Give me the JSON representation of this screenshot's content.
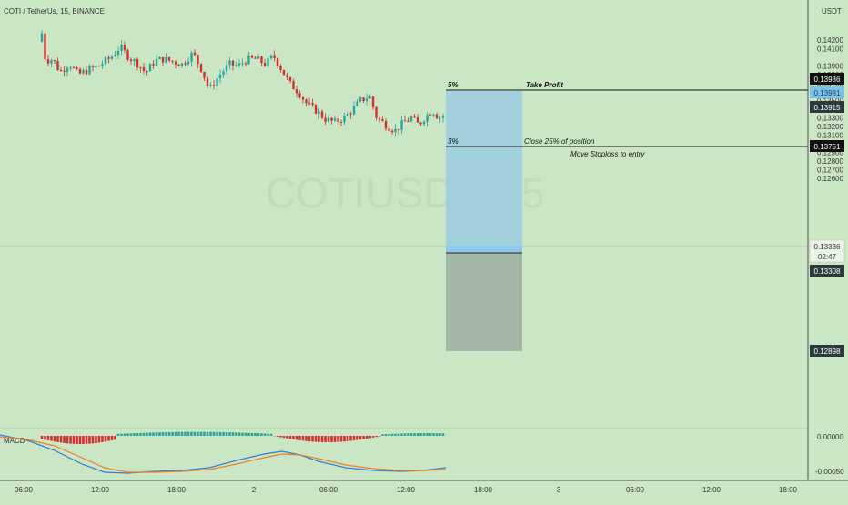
{
  "chart_title": "COTI / TetherUs, 15, BINANCE",
  "watermark": "COTIUSDT, 15",
  "axis_unit": "USDT",
  "countdown": "02:47",
  "colors": {
    "background": "#cbe6c5",
    "up": "#26a69a",
    "down": "#d32f2f",
    "profit_zone": "#9fd0de",
    "loss_zone": "#9fb7a5",
    "macd_line": "#2f7fd6",
    "signal_line": "#ef7f24"
  },
  "chart_data": {
    "type": "candlestick",
    "price_axis": {
      "unit": "USDT",
      "ticks": [
        "0.14200",
        "0.14100",
        "0.13900",
        "0.13800",
        "0.13700",
        "0.13600",
        "0.13500",
        "0.13400",
        "0.13300",
        "0.13200",
        "0.13100",
        "0.13000",
        "0.12900",
        "0.12800",
        "0.12700",
        "0.12600"
      ],
      "range": [
        0.1258,
        0.1437
      ]
    },
    "time_axis": {
      "ticks": [
        "06:00",
        "12:00",
        "18:00",
        "2",
        "06:00",
        "12:00",
        "18:00",
        "3",
        "06:00",
        "12:00",
        "18:00"
      ]
    },
    "candles_first_last": {
      "first_close": 0.1428,
      "last_close": 0.13336
    },
    "position": {
      "take_profit": {
        "price": "0.13986",
        "pct": "5%",
        "label": "Take Profit"
      },
      "partial_close": {
        "price": "0.13751",
        "pct": "3%",
        "label": "Close 25% of position",
        "note": "Move Stoploss to entry"
      },
      "entry": {
        "price": "0.13308"
      },
      "stop_loss": {
        "price": "0.12898"
      },
      "marker": {
        "price": "0.13981"
      },
      "aux": {
        "price": "0.13915"
      },
      "current": {
        "price": "0.13336"
      }
    },
    "macd": {
      "label": "MACD",
      "ticks": [
        "0.00000",
        "-0.00050"
      ]
    }
  }
}
